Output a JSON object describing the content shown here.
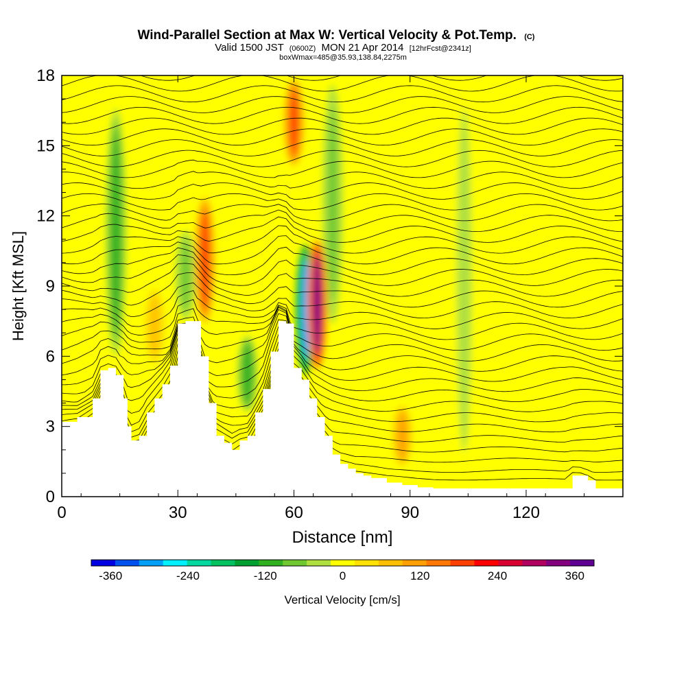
{
  "header": {
    "title": "Wind-Parallel Section at Max W: Vertical Velocity & Pot.Temp.",
    "title_mark": "(C)",
    "valid_prefix": "Valid 1500 JST",
    "valid_utc": "(0600Z)",
    "valid_date": "MON 21 Apr 2014",
    "forecast": "[12hrFcst@2341z]",
    "box_info": "boxWmax=485@35.93,138.84,2275m"
  },
  "chart_data": {
    "type": "heatmap",
    "xlabel": "Distance [nm]",
    "ylabel": "Height [Kft MSL]",
    "xlim": [
      0,
      145
    ],
    "ylim": [
      0,
      18
    ],
    "x_ticks": [
      0,
      30,
      60,
      90,
      120
    ],
    "y_ticks": [
      0,
      3,
      6,
      9,
      12,
      15,
      18
    ],
    "x_tick_labels": [
      "0",
      "30",
      "60",
      "90",
      "120"
    ],
    "y_tick_labels": [
      "0",
      "3",
      "6",
      "9",
      "12",
      "15",
      "18"
    ],
    "colorbar": {
      "label": "Vertical Velocity [cm/s]",
      "range": [
        -390,
        390
      ],
      "tick_values": [
        -360,
        -240,
        -120,
        0,
        120,
        240,
        360
      ],
      "tick_labels": [
        "-360",
        "-240",
        "-120",
        "0",
        "120",
        "240",
        "360"
      ],
      "colors": [
        "#0000e0",
        "#0050f0",
        "#00a0f8",
        "#00f0ff",
        "#00d8a0",
        "#00c060",
        "#00a030",
        "#30b020",
        "#70c830",
        "#b0e040",
        "#ffff00",
        "#ffe000",
        "#ffc000",
        "#ffa000",
        "#ff7800",
        "#ff4000",
        "#ff0000",
        "#d80030",
        "#b00060",
        "#800080",
        "#600090"
      ]
    },
    "terrain_kft": {
      "x": [
        0,
        4,
        8,
        10,
        12,
        14,
        16,
        17,
        18,
        20,
        22,
        24,
        26,
        28,
        30,
        32,
        34,
        36,
        38,
        40,
        42,
        44,
        46,
        48,
        50,
        52,
        54,
        56,
        58,
        60,
        62,
        64,
        66,
        68,
        70,
        72,
        74,
        76,
        78,
        80,
        84,
        88,
        92,
        96,
        100,
        110,
        120,
        130,
        132,
        134,
        136,
        138,
        140,
        145
      ],
      "y": [
        3.2,
        3.4,
        4.2,
        5.4,
        5.5,
        5.2,
        4.2,
        3.0,
        2.4,
        2.6,
        3.6,
        4.2,
        4.8,
        5.6,
        7.4,
        7.5,
        7.5,
        6.0,
        4.0,
        2.6,
        2.3,
        2.0,
        2.4,
        2.6,
        3.6,
        4.6,
        6.2,
        7.5,
        7.4,
        5.5,
        5.0,
        4.2,
        3.4,
        2.6,
        1.8,
        1.4,
        1.2,
        1.0,
        0.9,
        0.8,
        0.6,
        0.5,
        0.4,
        0.35,
        0.35,
        0.35,
        0.35,
        0.35,
        0.9,
        0.9,
        0.7,
        0.35,
        0.35,
        0.35
      ]
    },
    "updrafts": [
      {
        "x": 66,
        "y_bottom": 5.2,
        "y_top": 11.2,
        "w": 320
      },
      {
        "x": 37,
        "y_bottom": 7.2,
        "y_top": 13.0,
        "w": 200
      },
      {
        "x": 60,
        "y_bottom": 14.0,
        "y_top": 18.0,
        "w": 180
      },
      {
        "x": 88,
        "y_bottom": 1.2,
        "y_top": 4.0,
        "w": 100
      },
      {
        "x": 24,
        "y_bottom": 5.6,
        "y_top": 9.0,
        "w": 90
      }
    ],
    "downdrafts": [
      {
        "x": 63,
        "y_bottom": 5.0,
        "y_top": 11.0,
        "w": -280
      },
      {
        "x": 14,
        "y_bottom": 5.6,
        "y_top": 17.0,
        "w": -110
      },
      {
        "x": 48,
        "y_bottom": 3.5,
        "y_top": 7.0,
        "w": -110
      },
      {
        "x": 70,
        "y_bottom": 7.0,
        "y_top": 18.0,
        "w": -80
      },
      {
        "x": 32,
        "y_bottom": 7.4,
        "y_top": 11.5,
        "w": -70
      },
      {
        "x": 104,
        "y_bottom": 0.5,
        "y_top": 18.0,
        "w": -40
      }
    ],
    "isentropes": {
      "count": 40,
      "bottom_kft": 0.6,
      "top_kft": 18.6
    }
  }
}
